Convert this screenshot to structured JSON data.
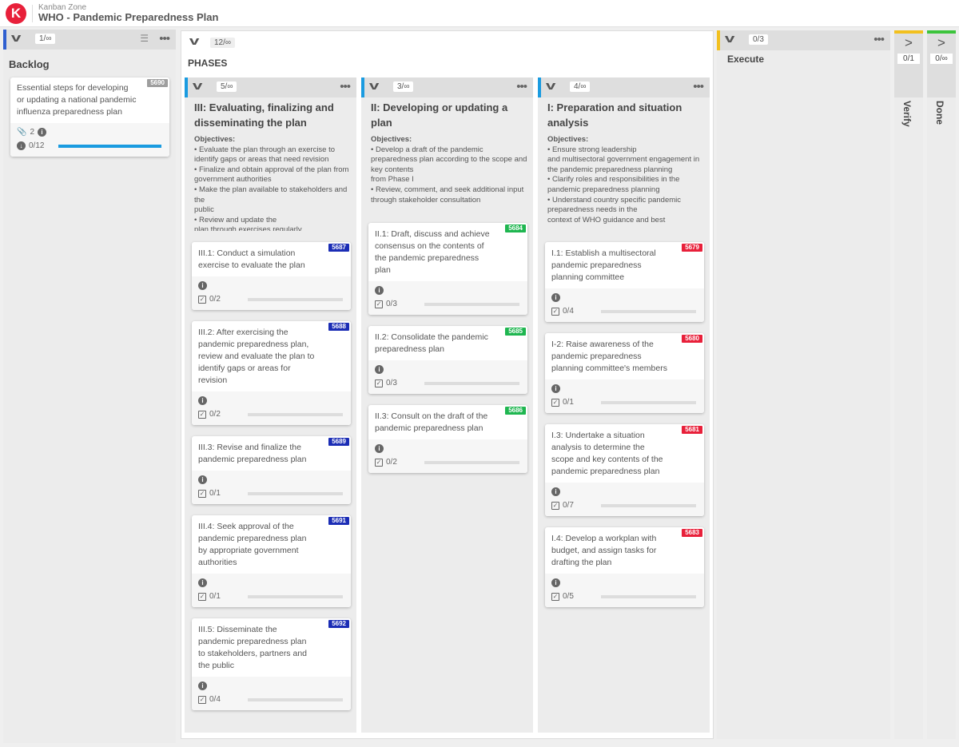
{
  "header": {
    "logo_letter": "K",
    "app_name": "Kanban Zone",
    "board_title": "WHO - Pandemic Preparedness Plan"
  },
  "backlog": {
    "wip": "1/∞",
    "title": "Backlog",
    "stripe": "#2f5fd0",
    "card": {
      "id": "5690",
      "badge_color": "#9e9e9e",
      "text": "Essential steps for developing or updating a national pandemic influenza preparedness plan",
      "attachments": "2",
      "progress_label": "0/12",
      "progress": 1.0,
      "bar_color": "#1a9be0"
    }
  },
  "phases": {
    "wip": "12/∞",
    "title": "PHASES",
    "columns": [
      {
        "wip": "5/∞",
        "stripe": "#1a9be0",
        "title": "III: Evaluating, finalizing and disseminating the plan",
        "objectives_label": "Objectives:",
        "objectives": "• Evaluate the plan through an exercise to identify gaps or areas that need revision\n• Finalize and obtain approval of the plan from government authorities\n• Make the plan available to stakeholders and the\npublic\n• Review and update the\nplan through exercises regularly",
        "badge_color": "#1b2db5",
        "cards": [
          {
            "id": "5687",
            "text": "III.1: Conduct a simulation exercise to evaluate the plan",
            "checklist": "0/2"
          },
          {
            "id": "5688",
            "text": "III.2: After exercising the pandemic preparedness plan, review and evaluate the plan to identify gaps or areas for revision",
            "checklist": "0/2"
          },
          {
            "id": "5689",
            "text": "III.3: Revise and finalize the pandemic preparedness plan",
            "checklist": "0/1"
          },
          {
            "id": "5691",
            "text": "III.4: Seek approval of the pandemic preparedness plan by appropriate government authorities",
            "checklist": "0/1"
          },
          {
            "id": "5692",
            "text": "III.5: Disseminate the pandemic preparedness plan to stakeholders, partners and the public",
            "checklist": "0/4"
          }
        ]
      },
      {
        "wip": "3/∞",
        "stripe": "#1a9be0",
        "title": "II: Developing or updating a plan",
        "objectives_label": "Objectives:",
        "objectives": "• Develop a draft of the pandemic preparedness plan according to the scope and key contents\nfrom Phase I\n• Review, comment, and seek additional input through stakeholder consultation",
        "badge_color": "#1fb650",
        "cards": [
          {
            "id": "5684",
            "text": "II.1: Draft, discuss and achieve consensus on the contents of the pandemic preparedness plan",
            "checklist": "0/3"
          },
          {
            "id": "5685",
            "text": "II.2: Consolidate the pandemic preparedness plan",
            "checklist": "0/3"
          },
          {
            "id": "5686",
            "text": "II.3: Consult on the draft of the pandemic preparedness plan",
            "checklist": "0/2"
          }
        ]
      },
      {
        "wip": "4/∞",
        "stripe": "#1a9be0",
        "title": "I: Preparation and situation analysis",
        "objectives_label": "Objectives:",
        "objectives": "• Ensure strong leadership\nand multisectoral government engagement in the pandemic preparedness planning\n• Clarify roles and responsibilities in the pandemic preparedness planning\n• Understand country specific pandemic preparedness needs in the\ncontext of WHO guidance and best",
        "badge_color": "#e8203a",
        "cards": [
          {
            "id": "5679",
            "text": "I.1: Establish a multisectoral pandemic preparedness planning committee",
            "checklist": "0/4"
          },
          {
            "id": "5680",
            "text": "I-2: Raise awareness of the pandemic preparedness planning committee's members",
            "checklist": "0/1"
          },
          {
            "id": "5681",
            "text": "I.3: Undertake a situation analysis to determine the scope and key contents of the pandemic preparedness plan",
            "checklist": "0/7"
          },
          {
            "id": "5683",
            "text": "I.4: Develop a workplan with budget, and assign tasks for drafting the plan",
            "checklist": "0/5"
          }
        ]
      }
    ]
  },
  "execute": {
    "wip": "0/3",
    "title": "Execute",
    "stripe": "#f2c01e"
  },
  "verify": {
    "wip": "0/1",
    "title": "Verify",
    "color": "#f2c01e"
  },
  "done": {
    "wip": "0/∞",
    "title": "Done",
    "color": "#3cc43c"
  }
}
